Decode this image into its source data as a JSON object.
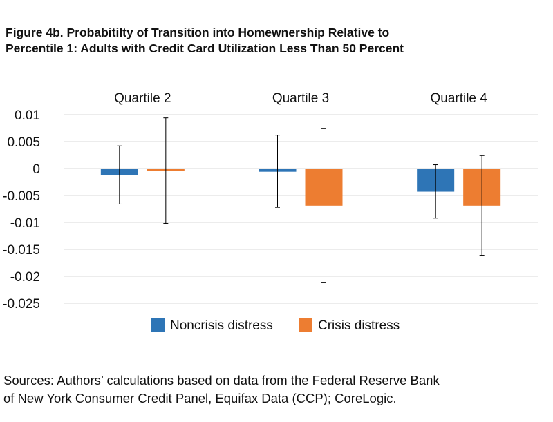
{
  "title_lines": [
    "Figure 4b. Probabitilty of Transition into Homewnership Relative to",
    "Percentile 1: Adults with Credit Card Utilization Less Than 50 Percent"
  ],
  "source_lines": [
    "Sources: Authors’ calculations based on data from the Federal Reserve Bank",
    "of New York Consumer Credit Panel, Equifax Data (CCP); CoreLogic."
  ],
  "colors": {
    "noncrisis": "#2e75b6",
    "crisis": "#ed7d31",
    "grid": "#d9d9d9",
    "error_bar": "#000000"
  },
  "chart_data": {
    "type": "bar",
    "title": "",
    "xlabel": "",
    "ylabel": "",
    "categories": [
      "Quartile 2",
      "Quartile 3",
      "Quartile 4"
    ],
    "category_labels_position": "top",
    "ylim": [
      -0.025,
      0.01
    ],
    "yticks": [
      0.01,
      0.005,
      0,
      -0.005,
      -0.01,
      -0.015,
      -0.02,
      -0.025
    ],
    "ytick_labels": [
      "0.01",
      "0.005",
      "0",
      "-0.005",
      "-0.01",
      "-0.015",
      "-0.02",
      "-0.025"
    ],
    "grid": true,
    "legend": "bottom",
    "series": [
      {
        "name": "Noncrisis distress",
        "values": [
          -0.0012,
          -0.0006,
          -0.0043
        ],
        "error_low": [
          -0.0066,
          -0.0072,
          -0.0092
        ],
        "error_high": [
          0.0042,
          0.0062,
          0.0007
        ]
      },
      {
        "name": "Crisis distress",
        "values": [
          -0.0004,
          -0.0069,
          -0.0069
        ],
        "error_low": [
          -0.0102,
          -0.0212,
          -0.0161
        ],
        "error_high": [
          0.0094,
          0.0074,
          0.0024
        ]
      }
    ]
  }
}
